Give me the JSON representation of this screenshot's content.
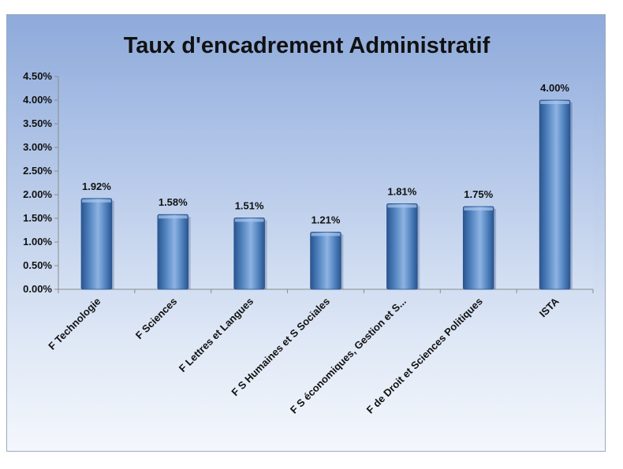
{
  "chart_data": {
    "type": "bar",
    "title": "Taux d'encadrement Administratif",
    "categories": [
      "F Technologie",
      "F Sciences",
      "F Lettres et Langues",
      "F S Humaines et S Sociales",
      "F S économiques, Gestion et S...",
      "F de Droit et Sciences Politiques",
      "ISTA"
    ],
    "values": [
      1.92,
      1.58,
      1.51,
      1.21,
      1.81,
      1.75,
      4.0
    ],
    "data_labels": [
      "1.92%",
      "1.58%",
      "1.51%",
      "1.21%",
      "1.81%",
      "1.75%",
      "4.00%"
    ],
    "yticks": [
      "0.00%",
      "0.50%",
      "1.00%",
      "1.50%",
      "2.00%",
      "2.50%",
      "3.00%",
      "3.50%",
      "4.00%",
      "4.50%"
    ],
    "ylim": [
      0,
      4.5
    ],
    "ytick_step": 0.5,
    "unit": "%",
    "xlabel": "",
    "ylabel": "",
    "grid": false,
    "legend": "none",
    "colors": {
      "bar": "#4f81bd",
      "bar_dark": "#2a5590",
      "bar_light": "#8db3e2",
      "axis": "#8c8c8c",
      "text": "#111111"
    }
  }
}
